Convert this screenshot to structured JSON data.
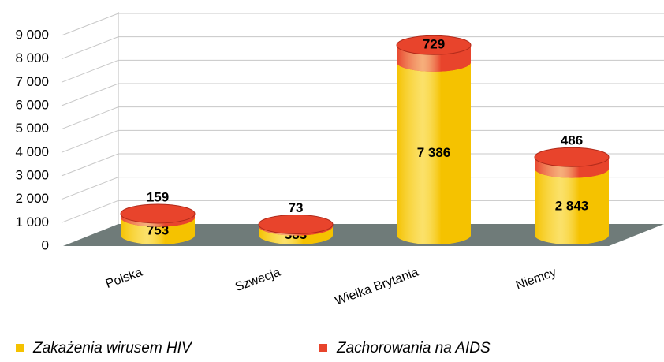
{
  "chart_data": {
    "type": "bar",
    "stacked": true,
    "categories": [
      "Polska",
      "Szwecja",
      "Wielka Brytania",
      "Niemcy"
    ],
    "series": [
      {
        "name": "Zakażenia wirusem HIV",
        "color": "#f5c200",
        "values": [
          753,
          383,
          7386,
          2843
        ],
        "value_labels": [
          "753",
          "383",
          "7 386",
          "2 843"
        ]
      },
      {
        "name": "Zachorowania na AIDS",
        "color": "#e8442c",
        "values": [
          159,
          73,
          729,
          486
        ]
      }
    ],
    "ylim": [
      0,
      9000
    ],
    "yticks": [
      0,
      {
        "value": 1000,
        "label": "1 000"
      },
      {
        "value": 2000,
        "label": "2 000"
      },
      {
        "value": 3000,
        "label": "3 000"
      },
      {
        "value": 4000,
        "label": "4 000"
      },
      {
        "value": 5000,
        "label": "5 000"
      },
      {
        "value": 6000,
        "label": "6 000"
      },
      {
        "value": 7000,
        "label": "7 000"
      },
      {
        "value": 8000,
        "label": "8 000"
      },
      {
        "value": 9000,
        "label": "9 000"
      }
    ],
    "grid": true,
    "legend": "bottom"
  }
}
